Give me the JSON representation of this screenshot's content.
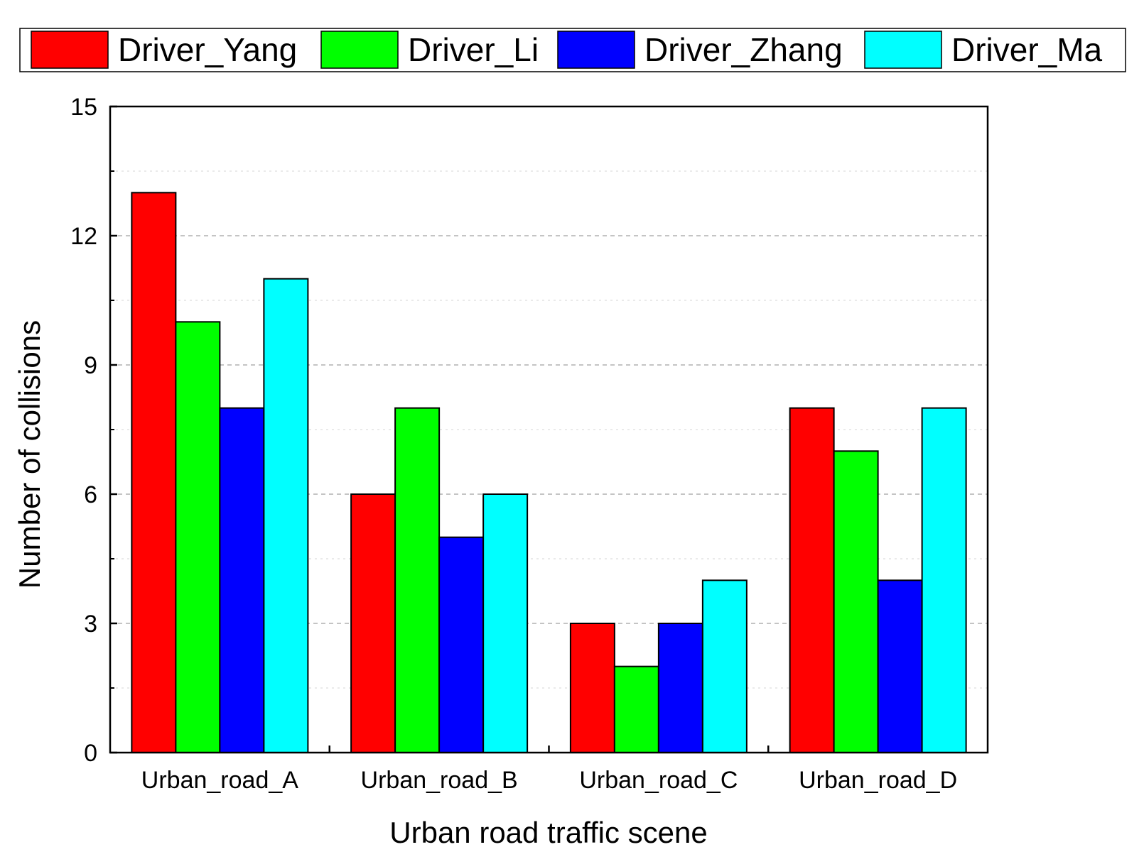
{
  "chart_data": {
    "type": "bar",
    "title": "",
    "xlabel": "Urban road traffic scene",
    "ylabel": "Number of collisions",
    "categories": [
      "Urban_road_A",
      "Urban_road_B",
      "Urban_road_C",
      "Urban_road_D"
    ],
    "series": [
      {
        "name": "Driver_Yang",
        "color": "#ff0000",
        "values": [
          13,
          6,
          3,
          8
        ]
      },
      {
        "name": "Driver_Li",
        "color": "#00ff00",
        "values": [
          10,
          8,
          2,
          7
        ]
      },
      {
        "name": "Driver_Zhang",
        "color": "#0000ff",
        "values": [
          8,
          5,
          3,
          4
        ]
      },
      {
        "name": "Driver_Ma",
        "color": "#00ffff",
        "values": [
          11,
          6,
          4,
          8
        ]
      }
    ],
    "ylim": [
      0,
      15
    ],
    "yticks": [
      "0",
      "3",
      "6",
      "9",
      "12",
      "15"
    ],
    "grid": true,
    "legend_position": "top"
  }
}
